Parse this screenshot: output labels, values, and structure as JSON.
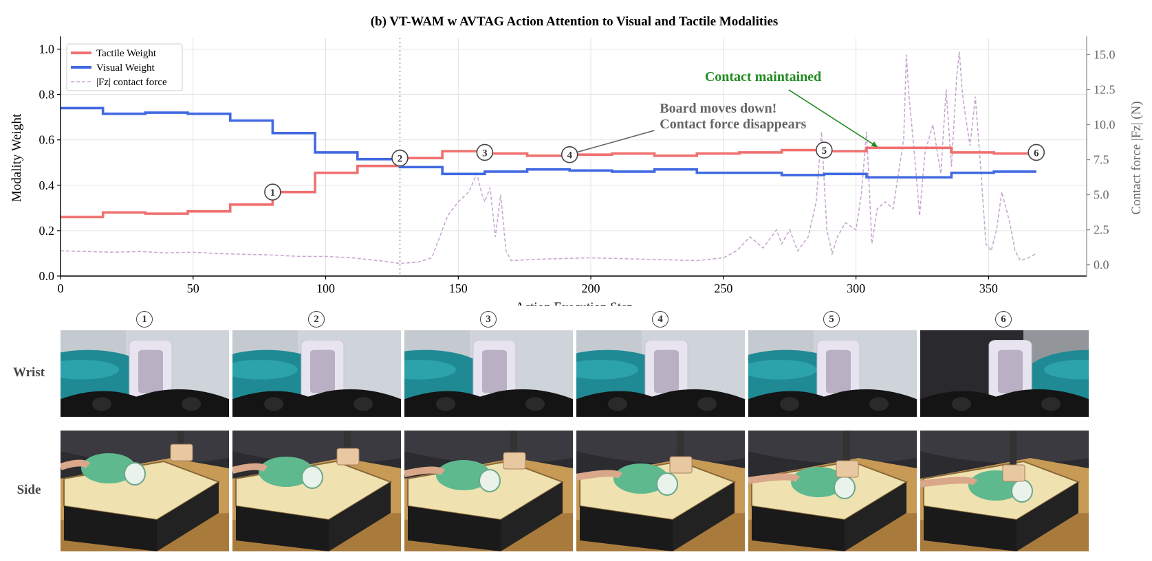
{
  "chart_data": {
    "type": "line",
    "title": "(b) VT-WAM w AVTAG Action Attention to Visual and Tactile Modalities",
    "xlabel": "Action Execution Step",
    "ylabel": "Modality Weight",
    "y2label": "Contact force |Fz| (N)",
    "xlim": [
      0,
      387
    ],
    "ylim": [
      0,
      1.05
    ],
    "y2lim": [
      -0.8,
      16.2
    ],
    "xticks": [
      "0",
      "50",
      "100",
      "150",
      "200",
      "250",
      "300",
      "350"
    ],
    "yticks": [
      "0.0",
      "0.2",
      "0.4",
      "0.6",
      "0.8",
      "1.0"
    ],
    "y2ticks": [
      "0.0",
      "2.5",
      "5.0",
      "7.5",
      "10.0",
      "12.5",
      "15.0"
    ],
    "grid": true,
    "legend_position": "top-left",
    "series": [
      {
        "name": "Tactile Weight",
        "color": "#f07070",
        "style": "step",
        "x": [
          0,
          16,
          32,
          48,
          64,
          80,
          96,
          112,
          128,
          144,
          160,
          176,
          192,
          208,
          224,
          240,
          256,
          272,
          288,
          304,
          320,
          336,
          352,
          368
        ],
        "values": [
          0.26,
          0.28,
          0.275,
          0.285,
          0.315,
          0.37,
          0.455,
          0.485,
          0.52,
          0.55,
          0.54,
          0.53,
          0.535,
          0.54,
          0.53,
          0.54,
          0.545,
          0.555,
          0.55,
          0.565,
          0.565,
          0.545,
          0.54,
          0.54
        ]
      },
      {
        "name": "Visual Weight",
        "color": "#4169e1",
        "style": "step",
        "x": [
          0,
          16,
          32,
          48,
          64,
          80,
          96,
          112,
          128,
          144,
          160,
          176,
          192,
          208,
          224,
          240,
          256,
          272,
          288,
          304,
          320,
          336,
          352,
          368
        ],
        "values": [
          0.74,
          0.715,
          0.72,
          0.715,
          0.685,
          0.63,
          0.545,
          0.515,
          0.48,
          0.45,
          0.46,
          0.47,
          0.465,
          0.46,
          0.47,
          0.455,
          0.455,
          0.445,
          0.45,
          0.435,
          0.435,
          0.455,
          0.46,
          0.46
        ]
      },
      {
        "name": "|Fz| contact force",
        "color": "#c8a8d0",
        "style": "dashed",
        "axis": "right",
        "x": [
          0,
          10,
          20,
          30,
          40,
          50,
          60,
          70,
          80,
          90,
          100,
          110,
          120,
          128,
          135,
          140,
          143,
          146,
          150,
          154,
          157,
          159,
          160,
          162,
          164,
          166,
          168,
          170,
          180,
          200,
          220,
          240,
          250,
          255,
          260,
          265,
          270,
          272,
          275,
          278,
          282,
          285,
          287,
          289,
          291,
          293,
          296,
          300,
          302,
          304,
          306,
          308,
          311,
          314,
          316,
          318,
          319,
          320,
          322,
          324,
          326,
          329,
          332,
          334,
          336,
          338,
          339,
          340,
          341,
          343,
          345,
          347,
          349,
          351,
          353,
          355,
          358,
          360,
          362,
          365,
          368
        ],
        "values": [
          1.0,
          0.95,
          0.9,
          0.95,
          0.85,
          0.9,
          0.8,
          0.75,
          0.7,
          0.6,
          0.6,
          0.5,
          0.3,
          0.1,
          0.2,
          0.5,
          2.0,
          3.5,
          4.5,
          5.2,
          6.5,
          5.0,
          4.5,
          5.5,
          2.0,
          5.0,
          1.0,
          0.3,
          0.4,
          0.5,
          0.4,
          0.3,
          0.5,
          1.0,
          2.0,
          1.2,
          2.5,
          1.5,
          2.5,
          1.0,
          2.0,
          4.5,
          9.5,
          2.5,
          0.8,
          2.0,
          3.0,
          2.5,
          5.0,
          9.5,
          1.5,
          4.0,
          4.5,
          4.0,
          6.5,
          9.0,
          15.0,
          12.0,
          8.0,
          3.5,
          8.0,
          10.0,
          6.5,
          12.5,
          7.0,
          13.5,
          15.2,
          12.5,
          11.0,
          8.5,
          12.0,
          7.0,
          1.5,
          1.0,
          2.5,
          5.2,
          3.0,
          1.0,
          0.3,
          0.5,
          0.8
        ]
      }
    ],
    "vline": {
      "x": 128,
      "style": "dotted"
    },
    "markers": [
      {
        "label": "1",
        "x": 80,
        "y": 0.37
      },
      {
        "label": "2",
        "x": 128,
        "y": 0.52
      },
      {
        "label": "3",
        "x": 160,
        "y": 0.545
      },
      {
        "label": "4",
        "x": 192,
        "y": 0.535
      },
      {
        "label": "5",
        "x": 288,
        "y": 0.555
      },
      {
        "label": "6",
        "x": 368,
        "y": 0.545
      }
    ],
    "annotations": [
      {
        "lines": [
          "Board moves down!",
          "Contact force disappears"
        ],
        "color": "#666666",
        "text_x": 226,
        "text_y": 0.72,
        "arrow_to": [
          193,
          0.54
        ]
      },
      {
        "lines": [
          "Contact maintained"
        ],
        "color": "#228b22",
        "text_x": 243,
        "text_y": 0.86,
        "arrow_to": [
          308,
          0.57
        ]
      }
    ]
  },
  "image_grid": {
    "column_labels": [
      "1",
      "2",
      "3",
      "4",
      "5",
      "6"
    ],
    "rows": [
      {
        "label": "Wrist"
      },
      {
        "label": "Side"
      }
    ]
  }
}
